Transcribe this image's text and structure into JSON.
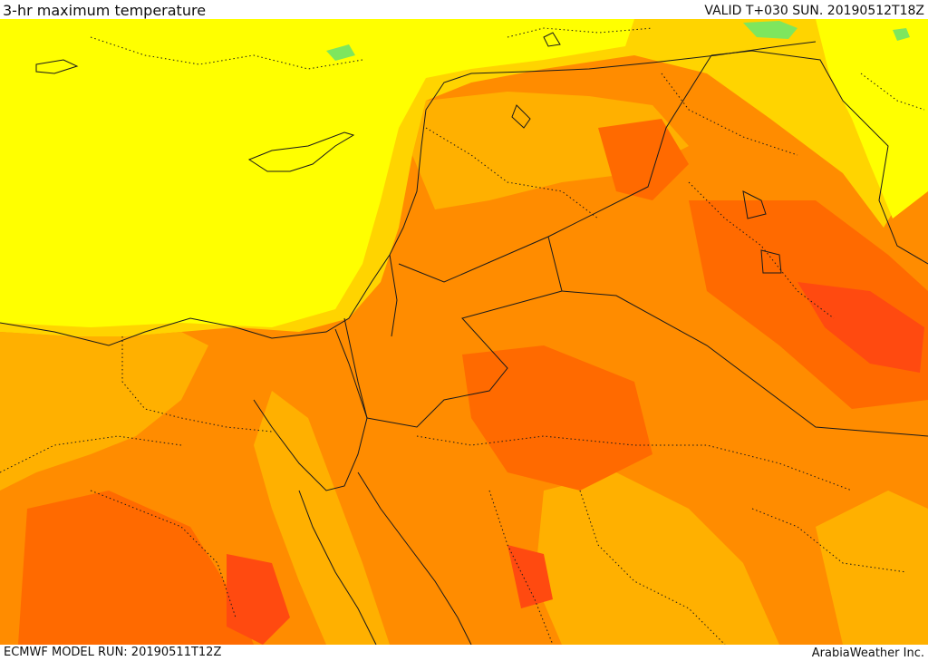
{
  "header": {
    "title": "3-hr maximum temperature",
    "valid": "VALID T+030 SUN. 20190512T18Z"
  },
  "footer": {
    "model_run": "ECMWF MODEL RUN: 20190511T12Z",
    "credit": "ArabiaWeather Inc."
  },
  "map": {
    "palette": {
      "green": "#7ee65e",
      "yellow": "#ffff00",
      "light_orange": "#ffd400",
      "amber": "#ffb000",
      "orange": "#ff8c00",
      "dark_orange": "#ff6a00",
      "red_orange": "#ff4a10",
      "border_line": "#1a1a1a"
    }
  }
}
